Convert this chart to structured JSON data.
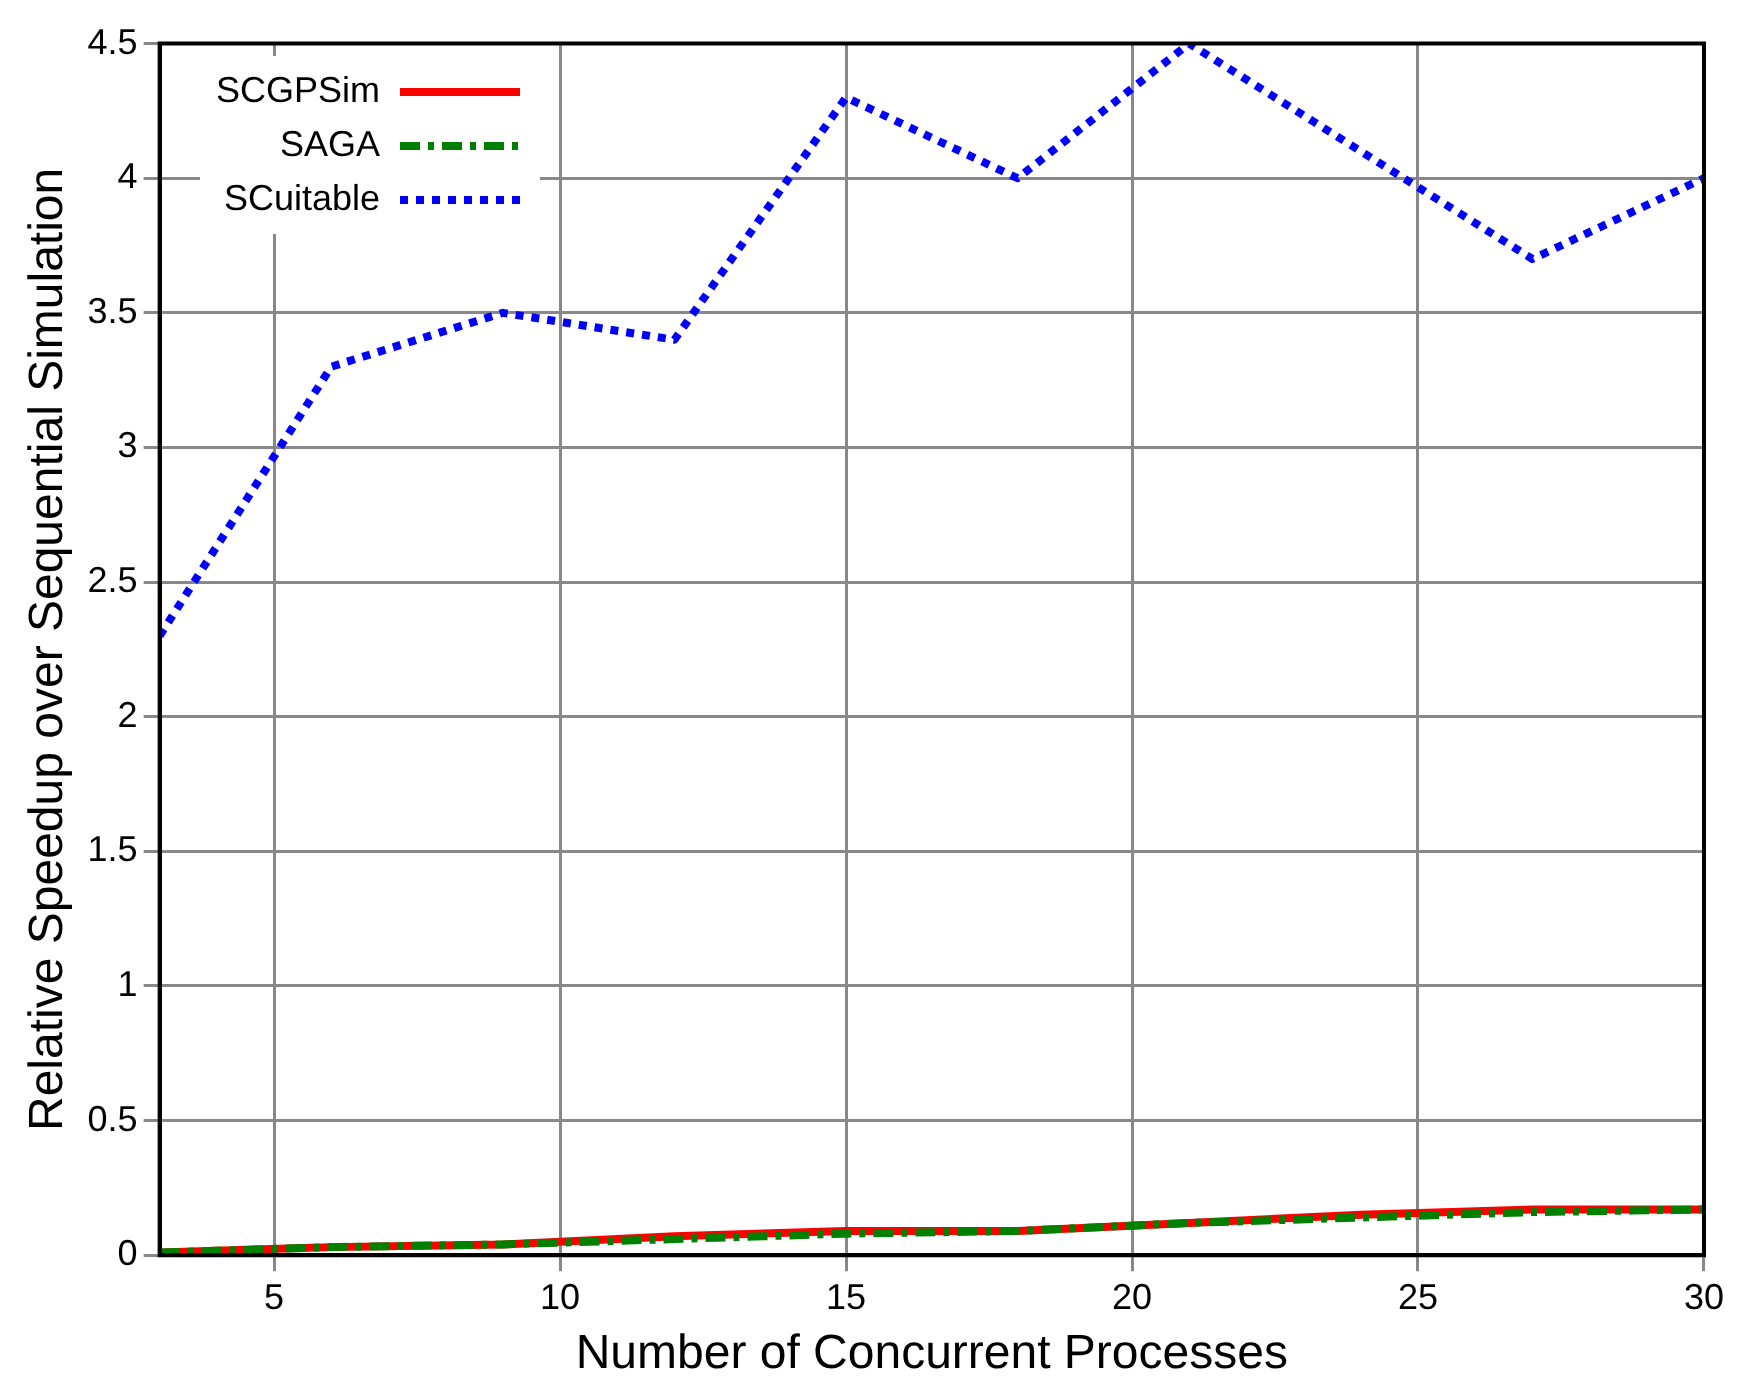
{
  "chart_data": {
    "type": "line",
    "xlabel": "Number of Concurrent Processes",
    "ylabel": "Relative Speedup over Sequential Simulation",
    "xlim": [
      3,
      30
    ],
    "xticks": [
      5,
      10,
      15,
      20,
      25,
      30
    ],
    "ylim": [
      0,
      4.5
    ],
    "yticks": [
      0,
      0.5,
      1,
      1.5,
      2,
      2.5,
      3,
      3.5,
      4,
      4.5
    ],
    "grid": true,
    "legend": "top left",
    "marker": "none",
    "series": [
      {
        "name": "SCGPSim",
        "color": "#ff0000",
        "line_style": "solid",
        "x": [
          3,
          6,
          9,
          12,
          15,
          18,
          21,
          24,
          27,
          30
        ],
        "values": [
          0.01,
          0.03,
          0.04,
          0.07,
          0.09,
          0.09,
          0.12,
          0.15,
          0.17,
          0.17
        ]
      },
      {
        "name": "SAGA",
        "color": "#008000",
        "line_style": "dashdot",
        "x": [
          3,
          6,
          9,
          12,
          15,
          18,
          21,
          24,
          27,
          30
        ],
        "values": [
          0.01,
          0.03,
          0.04,
          0.06,
          0.08,
          0.09,
          0.12,
          0.14,
          0.16,
          0.17
        ]
      },
      {
        "name": "SCuitable",
        "color": "#0000ff",
        "line_style": "dotted",
        "x": [
          3,
          6,
          9,
          12,
          15,
          18,
          21,
          27,
          30
        ],
        "values": [
          2.3,
          3.3,
          3.5,
          3.4,
          4.3,
          4.0,
          4.5,
          3.7,
          4.0
        ]
      }
    ]
  }
}
